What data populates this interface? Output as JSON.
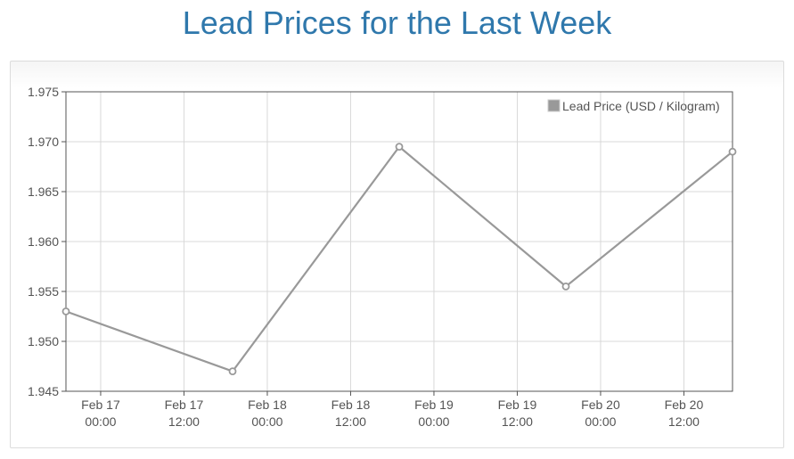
{
  "title": "Lead Prices for the Last Week",
  "colors": {
    "title": "#2f78ac",
    "series": "#999999",
    "grid": "#d8d8d8",
    "axis": "#545454"
  },
  "chart_data": {
    "type": "line",
    "title": "Lead Prices for the Last Week",
    "xlabel": "",
    "ylabel": "",
    "xlim": [
      "2025-02-16T19:00",
      "2025-02-20T19:00"
    ],
    "ylim": [
      1.945,
      1.975
    ],
    "grid": true,
    "legend_position": "top-right",
    "y_ticks": [
      "1.945",
      "1.950",
      "1.955",
      "1.960",
      "1.965",
      "1.970",
      "1.975"
    ],
    "x_ticks": [
      {
        "at": "2025-02-17T00:00",
        "label_line1": "Feb 17",
        "label_line2": "00:00"
      },
      {
        "at": "2025-02-17T12:00",
        "label_line1": "Feb 17",
        "label_line2": "12:00"
      },
      {
        "at": "2025-02-18T00:00",
        "label_line1": "Feb 18",
        "label_line2": "00:00"
      },
      {
        "at": "2025-02-18T12:00",
        "label_line1": "Feb 18",
        "label_line2": "12:00"
      },
      {
        "at": "2025-02-19T00:00",
        "label_line1": "Feb 19",
        "label_line2": "00:00"
      },
      {
        "at": "2025-02-19T12:00",
        "label_line1": "Feb 19",
        "label_line2": "12:00"
      },
      {
        "at": "2025-02-20T00:00",
        "label_line1": "Feb 20",
        "label_line2": "00:00"
      },
      {
        "at": "2025-02-20T12:00",
        "label_line1": "Feb 20",
        "label_line2": "12:00"
      }
    ],
    "series": [
      {
        "name": "Lead Price (USD / Kilogram)",
        "points": [
          {
            "x": "2025-02-16T19:00",
            "y": 1.953
          },
          {
            "x": "2025-02-17T19:00",
            "y": 1.947
          },
          {
            "x": "2025-02-18T19:00",
            "y": 1.9695
          },
          {
            "x": "2025-02-19T19:00",
            "y": 1.9555
          },
          {
            "x": "2025-02-20T19:00",
            "y": 1.969
          }
        ]
      }
    ]
  }
}
